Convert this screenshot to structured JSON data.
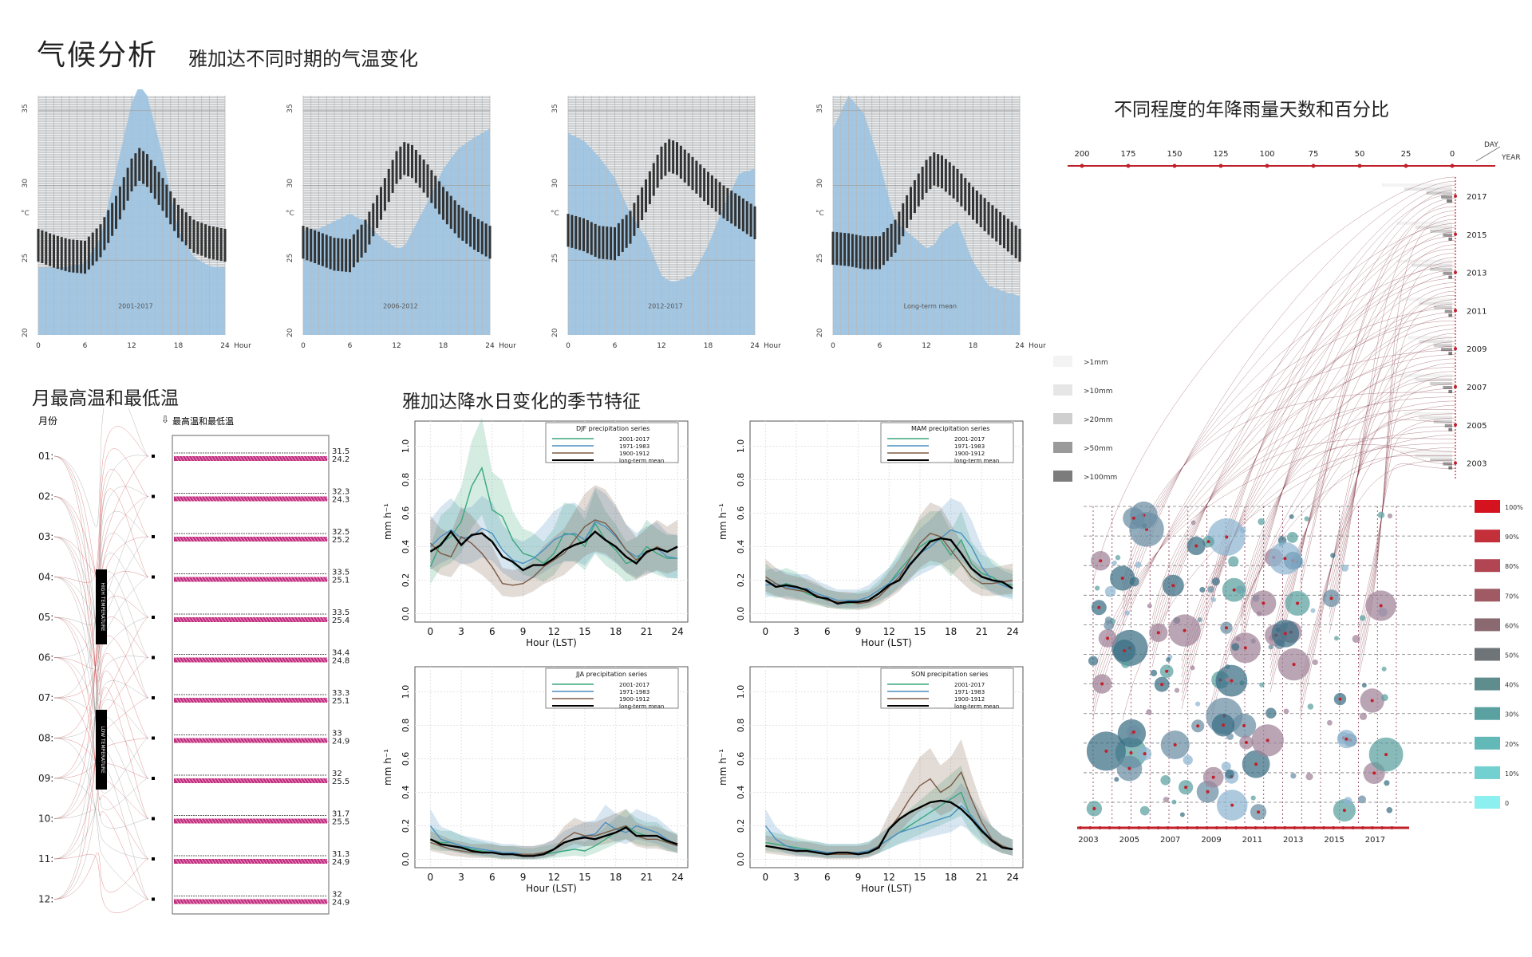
{
  "page": {
    "title": "气候分析",
    "subtitle": "雅加达不同时期的气温变化"
  },
  "colors": {
    "blue_fill": "#9fc5e3",
    "hatch": "#8a8a8a",
    "bar_dark": "#333333",
    "magenta": "#c0307f",
    "series_2001": "#3aa77b",
    "series_1971": "#4a8fc0",
    "series_1900": "#7b5a45",
    "series_mean": "#000000",
    "deep_red": "#c0202a"
  },
  "temp_charts": {
    "x_ticks": [
      "0",
      "6",
      "12",
      "18",
      "24"
    ],
    "x_unit": "Hour",
    "y_unit": "°C",
    "y_ticks": [
      "35",
      "30",
      "25",
      "20"
    ],
    "labels": [
      "2001-2017",
      "2006-2012",
      "2012-2017",
      "Long-term mean"
    ]
  },
  "monthly": {
    "title": "月最高温和最低温",
    "col_month": "月份",
    "col_values": "最高温和最低温",
    "high_label": "HIGH TEMPERATURE",
    "low_label": "LOW TEMPERATURE",
    "months": [
      "01",
      "02",
      "03",
      "04",
      "05",
      "06",
      "07",
      "08",
      "09",
      "10",
      "11",
      "12"
    ],
    "highs": [
      "31.5",
      "32.3",
      "32.5",
      "33.5",
      "33.5",
      "34.4",
      "33.3",
      "33",
      "32",
      "31.7",
      "31.3",
      "32"
    ],
    "lows": [
      "24.2",
      "24.3",
      "25.2",
      "25.1",
      "25.4",
      "24.8",
      "25.1",
      "24.9",
      "25.5",
      "25.5",
      "24.9",
      "24.9"
    ]
  },
  "precip": {
    "title": "雅加达降水日变化的季节特征",
    "ylabel": "mm h⁻¹",
    "xlabel": "Hour (LST)",
    "x_ticks": [
      "0",
      "3",
      "6",
      "9",
      "12",
      "15",
      "18",
      "21",
      "24"
    ],
    "y_ticks": [
      "0.0",
      "0.2",
      "0.4",
      "0.6",
      "0.8",
      "1.0"
    ],
    "legend_entries": [
      "2001-2017",
      "1971-1983",
      "1900-1912",
      "long-term mean"
    ]
  },
  "rain": {
    "title": "不同程度的年降雨量天数和百分比",
    "day_label": "DAY",
    "year_label": "YEAR",
    "day_ticks": [
      "200",
      "175",
      "150",
      "125",
      "100",
      "75",
      "50",
      "25",
      "0"
    ],
    "year_ticks": [
      "2017",
      "2015",
      "2013",
      "2011",
      "2009",
      "2007",
      "2005",
      "2003"
    ],
    "legend": [
      ">1mm",
      ">10mm",
      ">20mm",
      ">50mm",
      ">100mm"
    ],
    "legend_colors": [
      "#f3f3f3",
      "#e6e6e6",
      "#cfcfcf",
      "#9a9a9a",
      "#7c7c7c"
    ],
    "percent_labels": [
      "100%",
      "90%",
      "80%",
      "70%",
      "60%",
      "50%",
      "40%",
      "30%",
      "20%",
      "10%",
      "0"
    ],
    "percent_colors": [
      "#d4131f",
      "#c3303a",
      "#b14552",
      "#9f5a63",
      "#8a6a70",
      "#6e7478",
      "#5f8c8c",
      "#5aa2a2",
      "#63b8b8",
      "#72d0d0",
      "#8df0f0"
    ],
    "bottom_years": [
      "2003",
      "2005",
      "2007",
      "2009",
      "2011",
      "2013",
      "2015",
      "2017"
    ]
  },
  "chart_data": [
    {
      "type": "area",
      "title": "",
      "label": "2001-2017",
      "xlabel": "Hour",
      "ylabel": "°C",
      "x": [
        0,
        2,
        4,
        6,
        8,
        10,
        12,
        13,
        14,
        16,
        18,
        20,
        22,
        24
      ],
      "values": [
        26,
        25.6,
        25.3,
        25.2,
        26.3,
        28.2,
        30.7,
        31.4,
        31.0,
        29.4,
        27.6,
        26.6,
        26.2,
        26.0
      ],
      "band_upper": [
        24.5,
        24.5,
        24.6,
        24.8,
        26.5,
        31,
        35.5,
        36.7,
        36,
        32,
        27,
        25.2,
        24.6,
        24.5
      ],
      "xlim": [
        0,
        24
      ],
      "ylim": [
        20,
        36
      ]
    },
    {
      "type": "area",
      "title": "",
      "label": "2006-2012",
      "xlabel": "Hour",
      "ylabel": "°C",
      "x": [
        0,
        2,
        4,
        6,
        8,
        10,
        12,
        13,
        14,
        16,
        18,
        20,
        22,
        24
      ],
      "values": [
        26.2,
        25.8,
        25.4,
        25.3,
        26.6,
        28.8,
        31.2,
        31.8,
        31.6,
        30.3,
        28.8,
        27.6,
        26.8,
        26.2
      ],
      "band_upper": [
        27.0,
        27.1,
        27.6,
        28.1,
        27.6,
        26.5,
        25.8,
        25.9,
        26.9,
        28.9,
        31.1,
        32.5,
        33.2,
        33.8
      ],
      "xlim": [
        0,
        24
      ],
      "ylim": [
        20,
        36
      ]
    },
    {
      "type": "area",
      "title": "",
      "label": "2012-2017",
      "xlabel": "Hour",
      "ylabel": "°C",
      "x": [
        0,
        2,
        4,
        6,
        8,
        10,
        12,
        13,
        14,
        16,
        18,
        20,
        22,
        24
      ],
      "values": [
        27.0,
        26.7,
        26.2,
        26.1,
        27.2,
        29.3,
        31.5,
        32.0,
        31.8,
        30.8,
        29.8,
        28.9,
        28.2,
        27.5
      ],
      "band_upper": [
        33.5,
        33.0,
        31.9,
        30.5,
        28.1,
        26.5,
        24.0,
        23.6,
        23.6,
        24.0,
        26.0,
        28.6,
        30.8,
        31.1
      ],
      "xlim": [
        0,
        24
      ],
      "ylim": [
        20,
        36
      ]
    },
    {
      "type": "area",
      "title": "",
      "label": "Long-term mean",
      "xlabel": "Hour",
      "ylabel": "°C",
      "x": [
        0,
        2,
        4,
        6,
        8,
        10,
        12,
        13,
        14,
        16,
        18,
        20,
        22,
        24
      ],
      "values": [
        25.8,
        25.7,
        25.5,
        25.5,
        26.6,
        28.8,
        30.6,
        31.1,
        30.9,
        30.0,
        28.8,
        27.8,
        26.9,
        26.0
      ],
      "band_upper": [
        33.8,
        36.0,
        34.8,
        31.5,
        27.6,
        26.7,
        25.8,
        26.0,
        26.9,
        27.6,
        24.9,
        23.3,
        22.9,
        22.6
      ],
      "xlim": [
        0,
        24
      ],
      "ylim": [
        20,
        36
      ]
    },
    {
      "type": "line",
      "title": "DJF precipitation series",
      "xlabel": "Hour (LST)",
      "ylabel": "mm h⁻¹",
      "x": [
        0,
        1,
        2,
        3,
        4,
        5,
        6,
        7,
        8,
        9,
        10,
        11,
        12,
        13,
        14,
        15,
        16,
        17,
        18,
        19,
        20,
        21,
        22,
        23,
        24
      ],
      "ylim": [
        0,
        1.0
      ],
      "series": [
        {
          "name": "2001-2017",
          "values": [
            0.28,
            0.42,
            0.46,
            0.55,
            0.76,
            0.87,
            0.62,
            0.58,
            0.44,
            0.36,
            0.34,
            0.3,
            0.36,
            0.48,
            0.47,
            0.4,
            0.54,
            0.44,
            0.38,
            0.3,
            0.32,
            0.4,
            0.36,
            0.33,
            0.33
          ]
        },
        {
          "name": "1971-1983",
          "values": [
            0.4,
            0.46,
            0.5,
            0.45,
            0.46,
            0.51,
            0.48,
            0.38,
            0.32,
            0.3,
            0.33,
            0.38,
            0.44,
            0.47,
            0.48,
            0.44,
            0.55,
            0.52,
            0.46,
            0.38,
            0.34,
            0.37,
            0.39,
            0.34,
            0.33
          ]
        },
        {
          "name": "1900-1912",
          "values": [
            0.42,
            0.36,
            0.34,
            0.46,
            0.42,
            0.36,
            0.28,
            0.18,
            0.17,
            0.18,
            0.22,
            0.28,
            0.32,
            0.36,
            0.44,
            0.52,
            0.56,
            0.54,
            0.47,
            0.38,
            0.32,
            0.36,
            0.4,
            0.37,
            0.4
          ]
        },
        {
          "name": "long-term mean",
          "values": [
            0.37,
            0.41,
            0.49,
            0.41,
            0.47,
            0.48,
            0.43,
            0.34,
            0.31,
            0.26,
            0.29,
            0.29,
            0.33,
            0.38,
            0.41,
            0.43,
            0.49,
            0.44,
            0.4,
            0.34,
            0.3,
            0.37,
            0.39,
            0.37,
            0.4
          ]
        }
      ]
    },
    {
      "type": "line",
      "title": "MAM precipitation series",
      "xlabel": "Hour (LST)",
      "ylabel": "mm h⁻¹",
      "x": [
        0,
        1,
        2,
        3,
        4,
        5,
        6,
        7,
        8,
        9,
        10,
        11,
        12,
        13,
        14,
        15,
        16,
        17,
        18,
        19,
        20,
        21,
        22,
        23,
        24
      ],
      "ylim": [
        0,
        1.0
      ],
      "series": [
        {
          "name": "2001-2017",
          "values": [
            0.2,
            0.16,
            0.18,
            0.16,
            0.12,
            0.1,
            0.08,
            0.07,
            0.06,
            0.07,
            0.08,
            0.12,
            0.18,
            0.26,
            0.33,
            0.4,
            0.44,
            0.44,
            0.35,
            0.44,
            0.3,
            0.24,
            0.22,
            0.18,
            0.17
          ]
        },
        {
          "name": "1971-1983",
          "values": [
            0.17,
            0.18,
            0.16,
            0.15,
            0.15,
            0.12,
            0.1,
            0.08,
            0.08,
            0.08,
            0.1,
            0.14,
            0.18,
            0.24,
            0.3,
            0.36,
            0.4,
            0.45,
            0.5,
            0.48,
            0.4,
            0.28,
            0.2,
            0.17,
            0.15
          ]
        },
        {
          "name": "1900-1912",
          "values": [
            0.22,
            0.18,
            0.15,
            0.14,
            0.13,
            0.11,
            0.08,
            0.07,
            0.07,
            0.06,
            0.07,
            0.1,
            0.16,
            0.22,
            0.32,
            0.42,
            0.48,
            0.46,
            0.38,
            0.3,
            0.22,
            0.18,
            0.18,
            0.19,
            0.2
          ]
        },
        {
          "name": "long-term mean",
          "values": [
            0.2,
            0.16,
            0.17,
            0.16,
            0.14,
            0.1,
            0.09,
            0.06,
            0.07,
            0.07,
            0.08,
            0.12,
            0.17,
            0.2,
            0.29,
            0.36,
            0.43,
            0.45,
            0.44,
            0.36,
            0.27,
            0.22,
            0.2,
            0.19,
            0.15
          ]
        }
      ]
    },
    {
      "type": "line",
      "title": "JJA precipitation series",
      "xlabel": "Hour (LST)",
      "ylabel": "mm h⁻¹",
      "x": [
        0,
        1,
        2,
        3,
        4,
        5,
        6,
        7,
        8,
        9,
        10,
        11,
        12,
        13,
        14,
        15,
        16,
        17,
        18,
        19,
        20,
        21,
        22,
        23,
        24
      ],
      "ylim": [
        0,
        1.0
      ],
      "series": [
        {
          "name": "2001-2017",
          "values": [
            0.12,
            0.1,
            0.1,
            0.08,
            0.06,
            0.05,
            0.04,
            0.03,
            0.03,
            0.02,
            0.02,
            0.03,
            0.04,
            0.05,
            0.06,
            0.05,
            0.08,
            0.12,
            0.16,
            0.2,
            0.16,
            0.14,
            0.14,
            0.1,
            0.09
          ]
        },
        {
          "name": "1971-1983",
          "values": [
            0.2,
            0.12,
            0.1,
            0.08,
            0.07,
            0.06,
            0.05,
            0.04,
            0.04,
            0.03,
            0.03,
            0.04,
            0.06,
            0.1,
            0.12,
            0.14,
            0.15,
            0.22,
            0.18,
            0.16,
            0.2,
            0.18,
            0.16,
            0.12,
            0.08
          ]
        },
        {
          "name": "1900-1912",
          "values": [
            0.1,
            0.08,
            0.06,
            0.05,
            0.04,
            0.04,
            0.04,
            0.03,
            0.03,
            0.03,
            0.03,
            0.04,
            0.06,
            0.12,
            0.16,
            0.14,
            0.14,
            0.16,
            0.18,
            0.2,
            0.14,
            0.12,
            0.12,
            0.1,
            0.08
          ]
        },
        {
          "name": "long-term mean",
          "values": [
            0.12,
            0.09,
            0.08,
            0.07,
            0.05,
            0.04,
            0.04,
            0.03,
            0.03,
            0.02,
            0.02,
            0.03,
            0.06,
            0.1,
            0.12,
            0.13,
            0.12,
            0.14,
            0.16,
            0.19,
            0.14,
            0.14,
            0.14,
            0.11,
            0.09
          ]
        }
      ]
    },
    {
      "type": "line",
      "title": "SON precipitation series",
      "xlabel": "Hour (LST)",
      "ylabel": "mm h⁻¹",
      "x": [
        0,
        1,
        2,
        3,
        4,
        5,
        6,
        7,
        8,
        9,
        10,
        11,
        12,
        13,
        14,
        15,
        16,
        17,
        18,
        19,
        20,
        21,
        22,
        23,
        24
      ],
      "ylim": [
        0,
        1.0
      ],
      "series": [
        {
          "name": "2001-2017",
          "values": [
            0.1,
            0.09,
            0.08,
            0.07,
            0.06,
            0.05,
            0.04,
            0.04,
            0.04,
            0.04,
            0.05,
            0.08,
            0.12,
            0.16,
            0.2,
            0.24,
            0.28,
            0.32,
            0.36,
            0.4,
            0.24,
            0.16,
            0.12,
            0.08,
            0.06
          ]
        },
        {
          "name": "1971-1983",
          "values": [
            0.2,
            0.12,
            0.08,
            0.06,
            0.05,
            0.05,
            0.04,
            0.04,
            0.04,
            0.04,
            0.05,
            0.08,
            0.12,
            0.16,
            0.18,
            0.2,
            0.22,
            0.24,
            0.26,
            0.32,
            0.26,
            0.18,
            0.12,
            0.08,
            0.06
          ]
        },
        {
          "name": "1900-1912",
          "values": [
            0.08,
            0.07,
            0.06,
            0.05,
            0.05,
            0.04,
            0.03,
            0.03,
            0.03,
            0.03,
            0.04,
            0.08,
            0.18,
            0.26,
            0.36,
            0.44,
            0.48,
            0.4,
            0.44,
            0.52,
            0.36,
            0.22,
            0.12,
            0.08,
            0.06
          ]
        },
        {
          "name": "long-term mean",
          "values": [
            0.08,
            0.07,
            0.06,
            0.05,
            0.05,
            0.04,
            0.03,
            0.04,
            0.04,
            0.03,
            0.04,
            0.07,
            0.18,
            0.24,
            0.28,
            0.31,
            0.34,
            0.35,
            0.34,
            0.3,
            0.24,
            0.17,
            0.11,
            0.07,
            0.06
          ]
        }
      ]
    },
    {
      "type": "bar",
      "title": "不同程度的年降雨量天数和百分比",
      "xlabel": "DAY",
      "ylabel": "YEAR",
      "categories": [
        "2017",
        "2015",
        "2013",
        "2011",
        "2009",
        "2007",
        "2005",
        "2003"
      ],
      "xlim": [
        200,
        0
      ],
      "series": [
        {
          "name": ">1mm",
          "values": [
            38,
            30,
            30,
            28,
            24,
            30,
            26,
            28
          ]
        },
        {
          "name": ">10mm",
          "values": [
            26,
            20,
            22,
            18,
            18,
            20,
            18,
            20
          ]
        },
        {
          "name": ">20mm",
          "values": [
            14,
            12,
            12,
            10,
            10,
            12,
            10,
            12
          ]
        },
        {
          "name": ">50mm",
          "values": [
            6,
            5,
            5,
            4,
            6,
            5,
            4,
            5
          ]
        },
        {
          "name": ">100mm",
          "values": [
            3,
            2,
            2,
            2,
            2,
            2,
            2,
            2
          ]
        }
      ]
    }
  ]
}
